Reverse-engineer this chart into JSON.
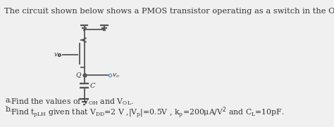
{
  "title_text": "The circuit shown below shows a PMOS transistor operating as a switch in the ON position:",
  "title_fontsize": 8.2,
  "background_color": "#f0f0f0",
  "text_color": "#333333",
  "circuit_color": "#555555",
  "fig_width": 4.74,
  "fig_height": 1.81,
  "dpi": 100,
  "label_a_prefix": "a.",
  "label_a_text": "Find the values of V",
  "label_a_oh": "OH",
  "label_a_mid": "and V",
  "label_a_ol": "OL",
  "label_b_prefix": "b.",
  "label_b_text": "Find t",
  "label_b_plh": "pLH",
  "label_b_rest": " given that V",
  "label_b_dd": "DD",
  "label_b_eq": "=2 V ,|V",
  "label_b_p": "p",
  "label_b_eq2": "|=0.5V , k",
  "label_b_kp": "p",
  "label_b_eq3": "=200μA/V",
  "label_b_eq4": " and C",
  "label_b_cl": "L",
  "label_b_eq5": "=10pF."
}
